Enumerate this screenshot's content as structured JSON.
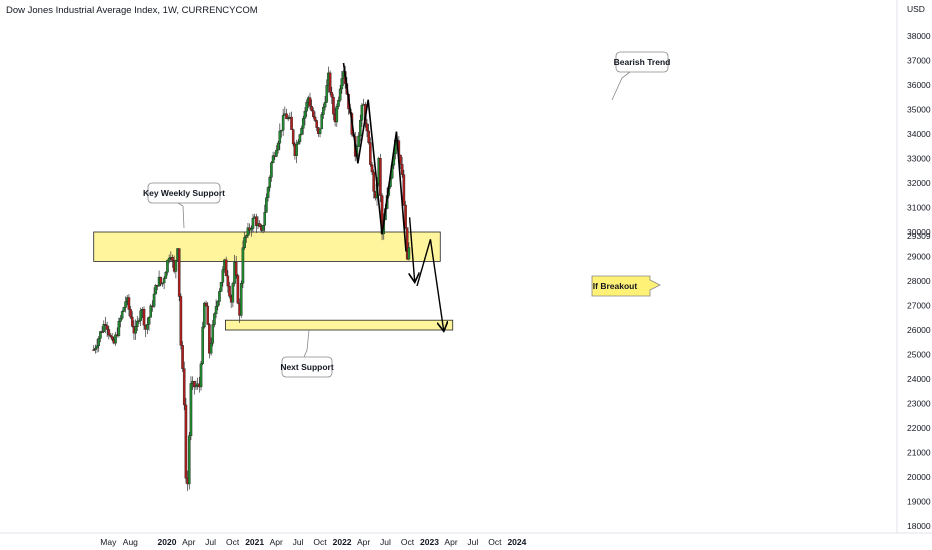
{
  "header": {
    "title": "Dow Jones Industrial Average Index, 1W, CURRENCYCOM"
  },
  "colors": {
    "up": "#1f8a2e",
    "down": "#b01d1d",
    "zone_fill": "#fff59d",
    "zone_stroke": "#222222",
    "breakout_fill": "#fff176"
  },
  "chart_data": {
    "type": "candlestick",
    "currency_label": "USD",
    "y_ticks": [
      38000,
      37000,
      36000,
      35000,
      34000,
      33000,
      32000,
      31000,
      30000,
      29000,
      28000,
      27000,
      26000,
      25000,
      24000,
      23000,
      22000,
      21000,
      20000,
      19000,
      18000
    ],
    "last_price": 29309,
    "x_ticks": [
      {
        "label": "May",
        "date": "2019-05-01",
        "bold": false
      },
      {
        "label": "Aug",
        "date": "2019-08-01",
        "bold": false
      },
      {
        "label": "2020",
        "date": "2020-01-01",
        "bold": true
      },
      {
        "label": "Apr",
        "date": "2020-04-01",
        "bold": false
      },
      {
        "label": "Jul",
        "date": "2020-07-01",
        "bold": false
      },
      {
        "label": "Oct",
        "date": "2020-10-01",
        "bold": false
      },
      {
        "label": "2021",
        "date": "2021-01-01",
        "bold": true
      },
      {
        "label": "Apr",
        "date": "2021-04-01",
        "bold": false
      },
      {
        "label": "Jul",
        "date": "2021-07-01",
        "bold": false
      },
      {
        "label": "Oct",
        "date": "2021-10-01",
        "bold": false
      },
      {
        "label": "2022",
        "date": "2022-01-01",
        "bold": true
      },
      {
        "label": "Apr",
        "date": "2022-04-01",
        "bold": false
      },
      {
        "label": "Jul",
        "date": "2022-07-01",
        "bold": false
      },
      {
        "label": "Oct",
        "date": "2022-10-01",
        "bold": false
      },
      {
        "label": "2023",
        "date": "2023-01-01",
        "bold": true
      },
      {
        "label": "Apr",
        "date": "2023-04-01",
        "bold": false
      },
      {
        "label": "Jul",
        "date": "2023-07-01",
        "bold": false
      },
      {
        "label": "Oct",
        "date": "2023-10-01",
        "bold": false
      },
      {
        "label": "2024",
        "date": "2024-01-01",
        "bold": true
      }
    ],
    "price_path": [
      [
        "2019-03-01",
        25200
      ],
      [
        "2019-04-20",
        26400
      ],
      [
        "2019-05-20",
        25300
      ],
      [
        "2019-07-15",
        27300
      ],
      [
        "2019-08-20",
        25800
      ],
      [
        "2019-09-15",
        27000
      ],
      [
        "2019-10-05",
        26000
      ],
      [
        "2019-11-25",
        28100
      ],
      [
        "2019-12-10",
        27800
      ],
      [
        "2020-01-15",
        29300
      ],
      [
        "2020-01-31",
        28300
      ],
      [
        "2020-02-14",
        29500
      ],
      [
        "2020-02-28",
        25400
      ],
      [
        "2020-03-13",
        23100
      ],
      [
        "2020-03-23",
        18600
      ],
      [
        "2020-04-10",
        23700
      ],
      [
        "2020-05-15",
        23700
      ],
      [
        "2020-06-08",
        27500
      ],
      [
        "2020-06-26",
        25100
      ],
      [
        "2020-07-24",
        27000
      ],
      [
        "2020-08-28",
        28700
      ],
      [
        "2020-09-25",
        27200
      ],
      [
        "2020-10-10",
        28700
      ],
      [
        "2020-10-30",
        26500
      ],
      [
        "2020-11-13",
        29500
      ],
      [
        "2020-12-31",
        30600
      ],
      [
        "2021-01-29",
        29900
      ],
      [
        "2021-03-12",
        32800
      ],
      [
        "2021-05-07",
        34800
      ],
      [
        "2021-05-28",
        34500
      ],
      [
        "2021-06-18",
        33300
      ],
      [
        "2021-08-13",
        35500
      ],
      [
        "2021-09-24",
        33900
      ],
      [
        "2021-11-05",
        36300
      ],
      [
        "2021-12-01",
        34500
      ],
      [
        "2022-01-05",
        36800
      ],
      [
        "2022-02-25",
        33200
      ],
      [
        "2022-03-30",
        35300
      ],
      [
        "2022-05-20",
        31200
      ],
      [
        "2022-06-03",
        32900
      ],
      [
        "2022-06-17",
        29900
      ],
      [
        "2022-08-16",
        34100
      ],
      [
        "2022-09-09",
        32200
      ],
      [
        "2022-09-30",
        28900
      ],
      [
        "2022-10-07",
        29309
      ]
    ],
    "zones": [
      {
        "name": "key-weekly-support-zone",
        "from": 28800,
        "to": 30000,
        "start": "2019-03-01",
        "end": "2023-02-15"
      },
      {
        "name": "next-support-zone",
        "from": 26000,
        "to": 26400,
        "start": "2020-09-01",
        "end": "2023-04-08"
      }
    ],
    "bearish_pattern": [
      [
        "2022-01-07",
        36900
      ],
      [
        "2022-03-08",
        32800
      ],
      [
        "2022-04-20",
        35400
      ],
      [
        "2022-06-17",
        29900
      ],
      [
        "2022-08-16",
        34100
      ],
      [
        "2022-09-25",
        29200
      ]
    ],
    "projection_1": [
      [
        "2022-10-10",
        30600
      ],
      [
        "2022-10-31",
        28000
      ]
    ],
    "projection_2": [
      [
        "2022-11-10",
        27800
      ],
      [
        "2023-01-05",
        29700
      ],
      [
        "2023-03-01",
        26000
      ]
    ],
    "callouts": {
      "key_weekly_support": "Key Weekly Support",
      "next_support": "Next Support",
      "bearish_trend": "Bearish Trend",
      "if_breakout": "If Breakout"
    }
  }
}
